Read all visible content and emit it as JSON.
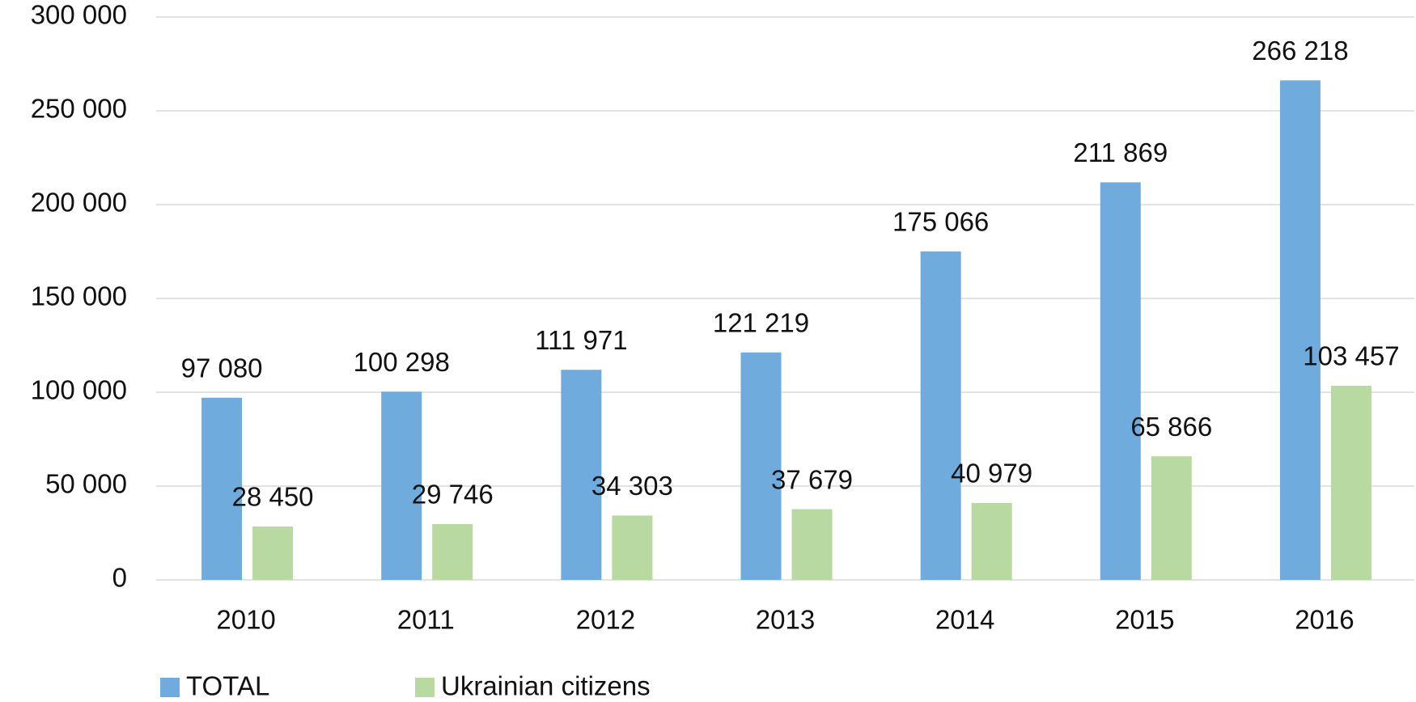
{
  "chart_data": {
    "type": "bar",
    "categories": [
      "2010",
      "2011",
      "2012",
      "2013",
      "2014",
      "2015",
      "2016"
    ],
    "series": [
      {
        "name": "TOTAL",
        "color": "#6fabdc",
        "values": [
          97080,
          100298,
          111971,
          121219,
          175066,
          211869,
          266218
        ],
        "value_labels": [
          "97 080",
          "100 298",
          "111 971",
          "121 219",
          "175 066",
          "211 869",
          "266 218"
        ]
      },
      {
        "name": "Ukrainian citizens",
        "color": "#b8d9a0",
        "values": [
          28450,
          29746,
          34303,
          37679,
          40979,
          65866,
          103457
        ],
        "value_labels": [
          "28 450",
          "29 746",
          "34 303",
          "37 679",
          "40 979",
          "65 866",
          "103 457"
        ]
      }
    ],
    "ylim": [
      0,
      300000
    ],
    "yticks": [
      {
        "value": 0,
        "label": "0"
      },
      {
        "value": 50000,
        "label": "50 000"
      },
      {
        "value": 100000,
        "label": "100 000"
      },
      {
        "value": 150000,
        "label": "150 000"
      },
      {
        "value": 200000,
        "label": "200 000"
      },
      {
        "value": 250000,
        "label": "250 000"
      },
      {
        "value": 300000,
        "label": "300 000"
      }
    ],
    "grid": true,
    "legend": "bottom-left"
  }
}
